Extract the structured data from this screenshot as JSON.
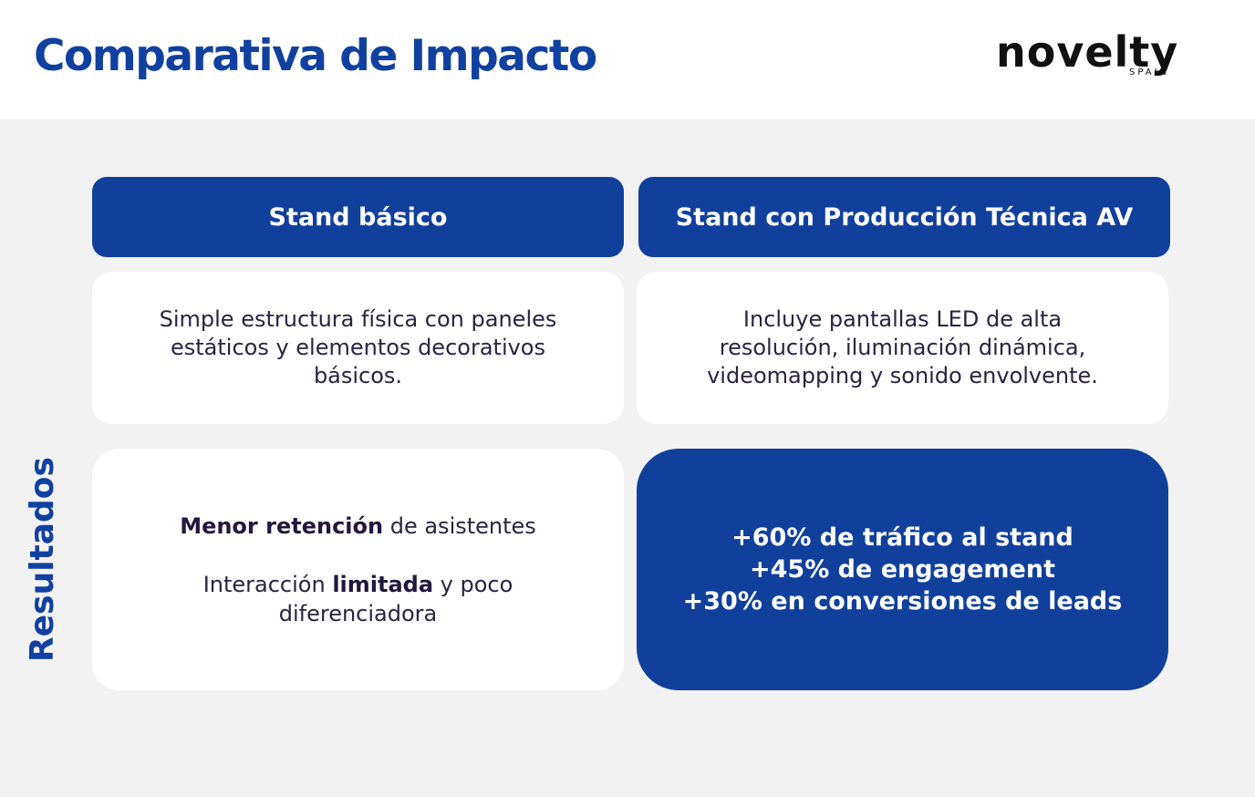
{
  "header": {
    "title": "Comparativa de Impacto",
    "logo": {
      "word": "novelty",
      "sub": "SPAIN"
    }
  },
  "columns": {
    "basic": {
      "title": "Stand básico"
    },
    "av": {
      "title": "Stand con Producción Técnica AV"
    }
  },
  "descriptions": {
    "basic": [
      "Simple estructura física con paneles",
      "estáticos y elementos decorativos",
      "básicos."
    ],
    "av": [
      "Incluye pantallas LED de alta",
      "resolución, iluminación dinámica,",
      "videomapping y sonido envolvente."
    ]
  },
  "results": {
    "label": "Resultados",
    "basic": {
      "line1_bold": "Menor retención",
      "line1_rest": " de asistentes",
      "line2_pre": "Interacción ",
      "line2_bold": "limitada",
      "line2_post": " y poco",
      "line3": "diferenciadora"
    },
    "av": [
      "+60% de tráfico al stand",
      "+45% de engagement",
      "+30% en conversiones de leads"
    ]
  },
  "colors": {
    "brand_blue": "#10409c",
    "background": "#f2f2f2",
    "text_dark": "#2a2342"
  }
}
